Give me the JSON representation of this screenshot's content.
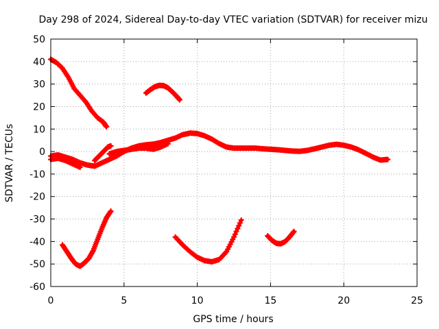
{
  "chart_data": {
    "type": "scatter",
    "title": "Day 298 of 2024, Sidereal Day-to-day VTEC variation (SDTVAR) for receiver mizu",
    "xlabel": "GPS time / hours",
    "ylabel": "SDTVAR / TECUs",
    "xlim": [
      0,
      25
    ],
    "ylim": [
      -60,
      50
    ],
    "xticks": [
      0,
      5,
      10,
      15,
      20,
      25
    ],
    "yticks": [
      -60,
      -50,
      -40,
      -30,
      -20,
      -10,
      0,
      10,
      20,
      30,
      40,
      50
    ],
    "grid": true,
    "marker": "plus",
    "color": "#ff0000",
    "series": [
      {
        "name": "arc-descending-top",
        "x": [
          0.0,
          0.4,
          0.8,
          1.2,
          1.6,
          2.0,
          2.4,
          2.8,
          3.2,
          3.6,
          3.8
        ],
        "y": [
          41,
          39.5,
          37,
          33,
          28,
          25,
          22,
          18,
          15,
          13,
          11
        ]
      },
      {
        "name": "arc-hump-30",
        "x": [
          6.5,
          6.8,
          7.1,
          7.4,
          7.7,
          8.0,
          8.3,
          8.6,
          8.8
        ],
        "y": [
          26,
          27.5,
          28.8,
          29.4,
          29.3,
          28.3,
          26.5,
          24.5,
          23
        ]
      },
      {
        "name": "arc-main-near-zero",
        "x": [
          0.0,
          0.5,
          1.0,
          1.5,
          2.0,
          2.5,
          3.0,
          3.5,
          4.0,
          4.5,
          5.0,
          5.5,
          6.0,
          6.5,
          7.0,
          7.5,
          8.0,
          8.5,
          9.0,
          9.5,
          10.0,
          10.5,
          11.0,
          11.5,
          12.0,
          12.5,
          13.0,
          13.5,
          14.0,
          14.5,
          15.0,
          15.5,
          16.0,
          16.5,
          17.0,
          17.5,
          18.0,
          18.5,
          19.0,
          19.5,
          20.0,
          20.5,
          21.0,
          21.5,
          22.0,
          22.5,
          23.0
        ],
        "y": [
          -2,
          -1.5,
          -2.5,
          -3.5,
          -5,
          -6,
          -6.5,
          -5,
          -3.5,
          -2,
          0,
          1.5,
          2.5,
          3,
          3.3,
          4,
          5,
          6,
          7.5,
          8.2,
          8,
          7,
          5.5,
          3.5,
          2,
          1.5,
          1.5,
          1.5,
          1.5,
          1.2,
          1,
          0.8,
          0.5,
          0.2,
          0.1,
          0.5,
          1.2,
          2,
          2.8,
          3.2,
          2.8,
          2,
          0.8,
          -0.8,
          -2.5,
          -3.8,
          -3.5
        ]
      },
      {
        "name": "arc-main-lower-band",
        "x": [
          0.0,
          0.5,
          1.0,
          1.5,
          2.0
        ],
        "y": [
          -3.5,
          -3,
          -4,
          -5.5,
          -7
        ]
      },
      {
        "name": "arc-rise-4",
        "x": [
          3.0,
          3.3,
          3.6,
          3.9,
          4.1
        ],
        "y": [
          -4,
          -2,
          0,
          2,
          2.5
        ]
      },
      {
        "name": "arc-mid-5",
        "x": [
          4.0,
          4.5,
          5.0,
          5.5,
          6.0,
          6.5,
          7.0,
          7.5,
          8.0
        ],
        "y": [
          -1,
          0,
          0.5,
          1,
          1.5,
          1.5,
          1,
          2,
          3.5
        ]
      },
      {
        "name": "arc-valley-left",
        "x": [
          0.8,
          1.1,
          1.4,
          1.7,
          2.0,
          2.3,
          2.6,
          2.9,
          3.2,
          3.5,
          3.8,
          4.1
        ],
        "y": [
          -41.5,
          -44.5,
          -47.5,
          -50,
          -51,
          -49.5,
          -47.5,
          -44,
          -39,
          -34,
          -29.5,
          -26.5
        ]
      },
      {
        "name": "arc-valley-middle",
        "x": [
          8.5,
          9.0,
          9.5,
          10.0,
          10.5,
          11.0,
          11.5,
          12.0,
          12.5,
          13.0
        ],
        "y": [
          -38,
          -41.5,
          -44.5,
          -47,
          -48.5,
          -49,
          -48,
          -44.5,
          -38,
          -30.5
        ]
      },
      {
        "name": "arc-valley-right",
        "x": [
          14.8,
          15.1,
          15.4,
          15.7,
          16.0,
          16.3,
          16.6
        ],
        "y": [
          -37.5,
          -39.5,
          -40.8,
          -41,
          -40,
          -38,
          -35.5
        ]
      }
    ]
  }
}
